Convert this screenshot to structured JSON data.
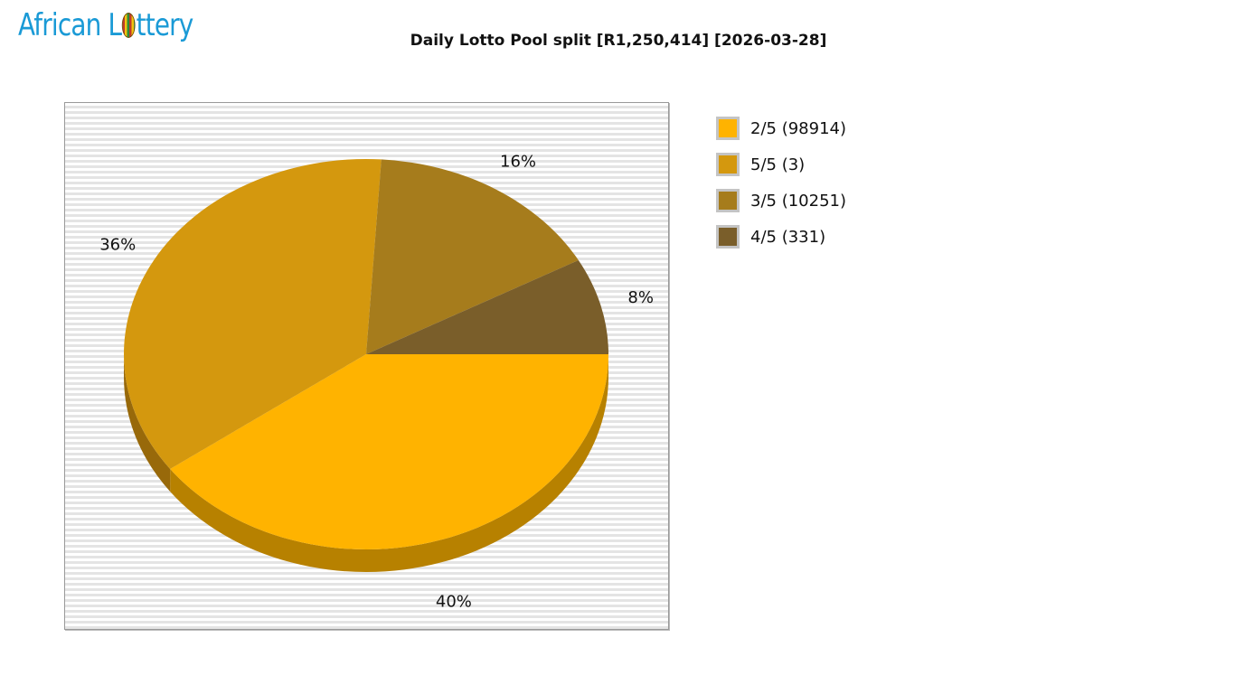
{
  "logo": {
    "text_before": "African L",
    "text_after": "ttery"
  },
  "chart_data": {
    "type": "pie",
    "title": "Daily Lotto Pool split [R1,250,414] [2026-03-28]",
    "slices": [
      {
        "label": "2/5 (98914)",
        "percent": 40,
        "color": "#ffb300",
        "side": "#b78100"
      },
      {
        "label": "5/5 (3)",
        "percent": 36,
        "color": "#d4980e",
        "side": "#98690a"
      },
      {
        "label": "3/5 (10251)",
        "percent": 16,
        "color": "#a67c1c",
        "side": "#765714"
      },
      {
        "label": "4/5 (331)",
        "percent": 8,
        "color": "#7a5e2a",
        "side": "#574220"
      }
    ],
    "legend_position": "right",
    "style": "3d"
  }
}
